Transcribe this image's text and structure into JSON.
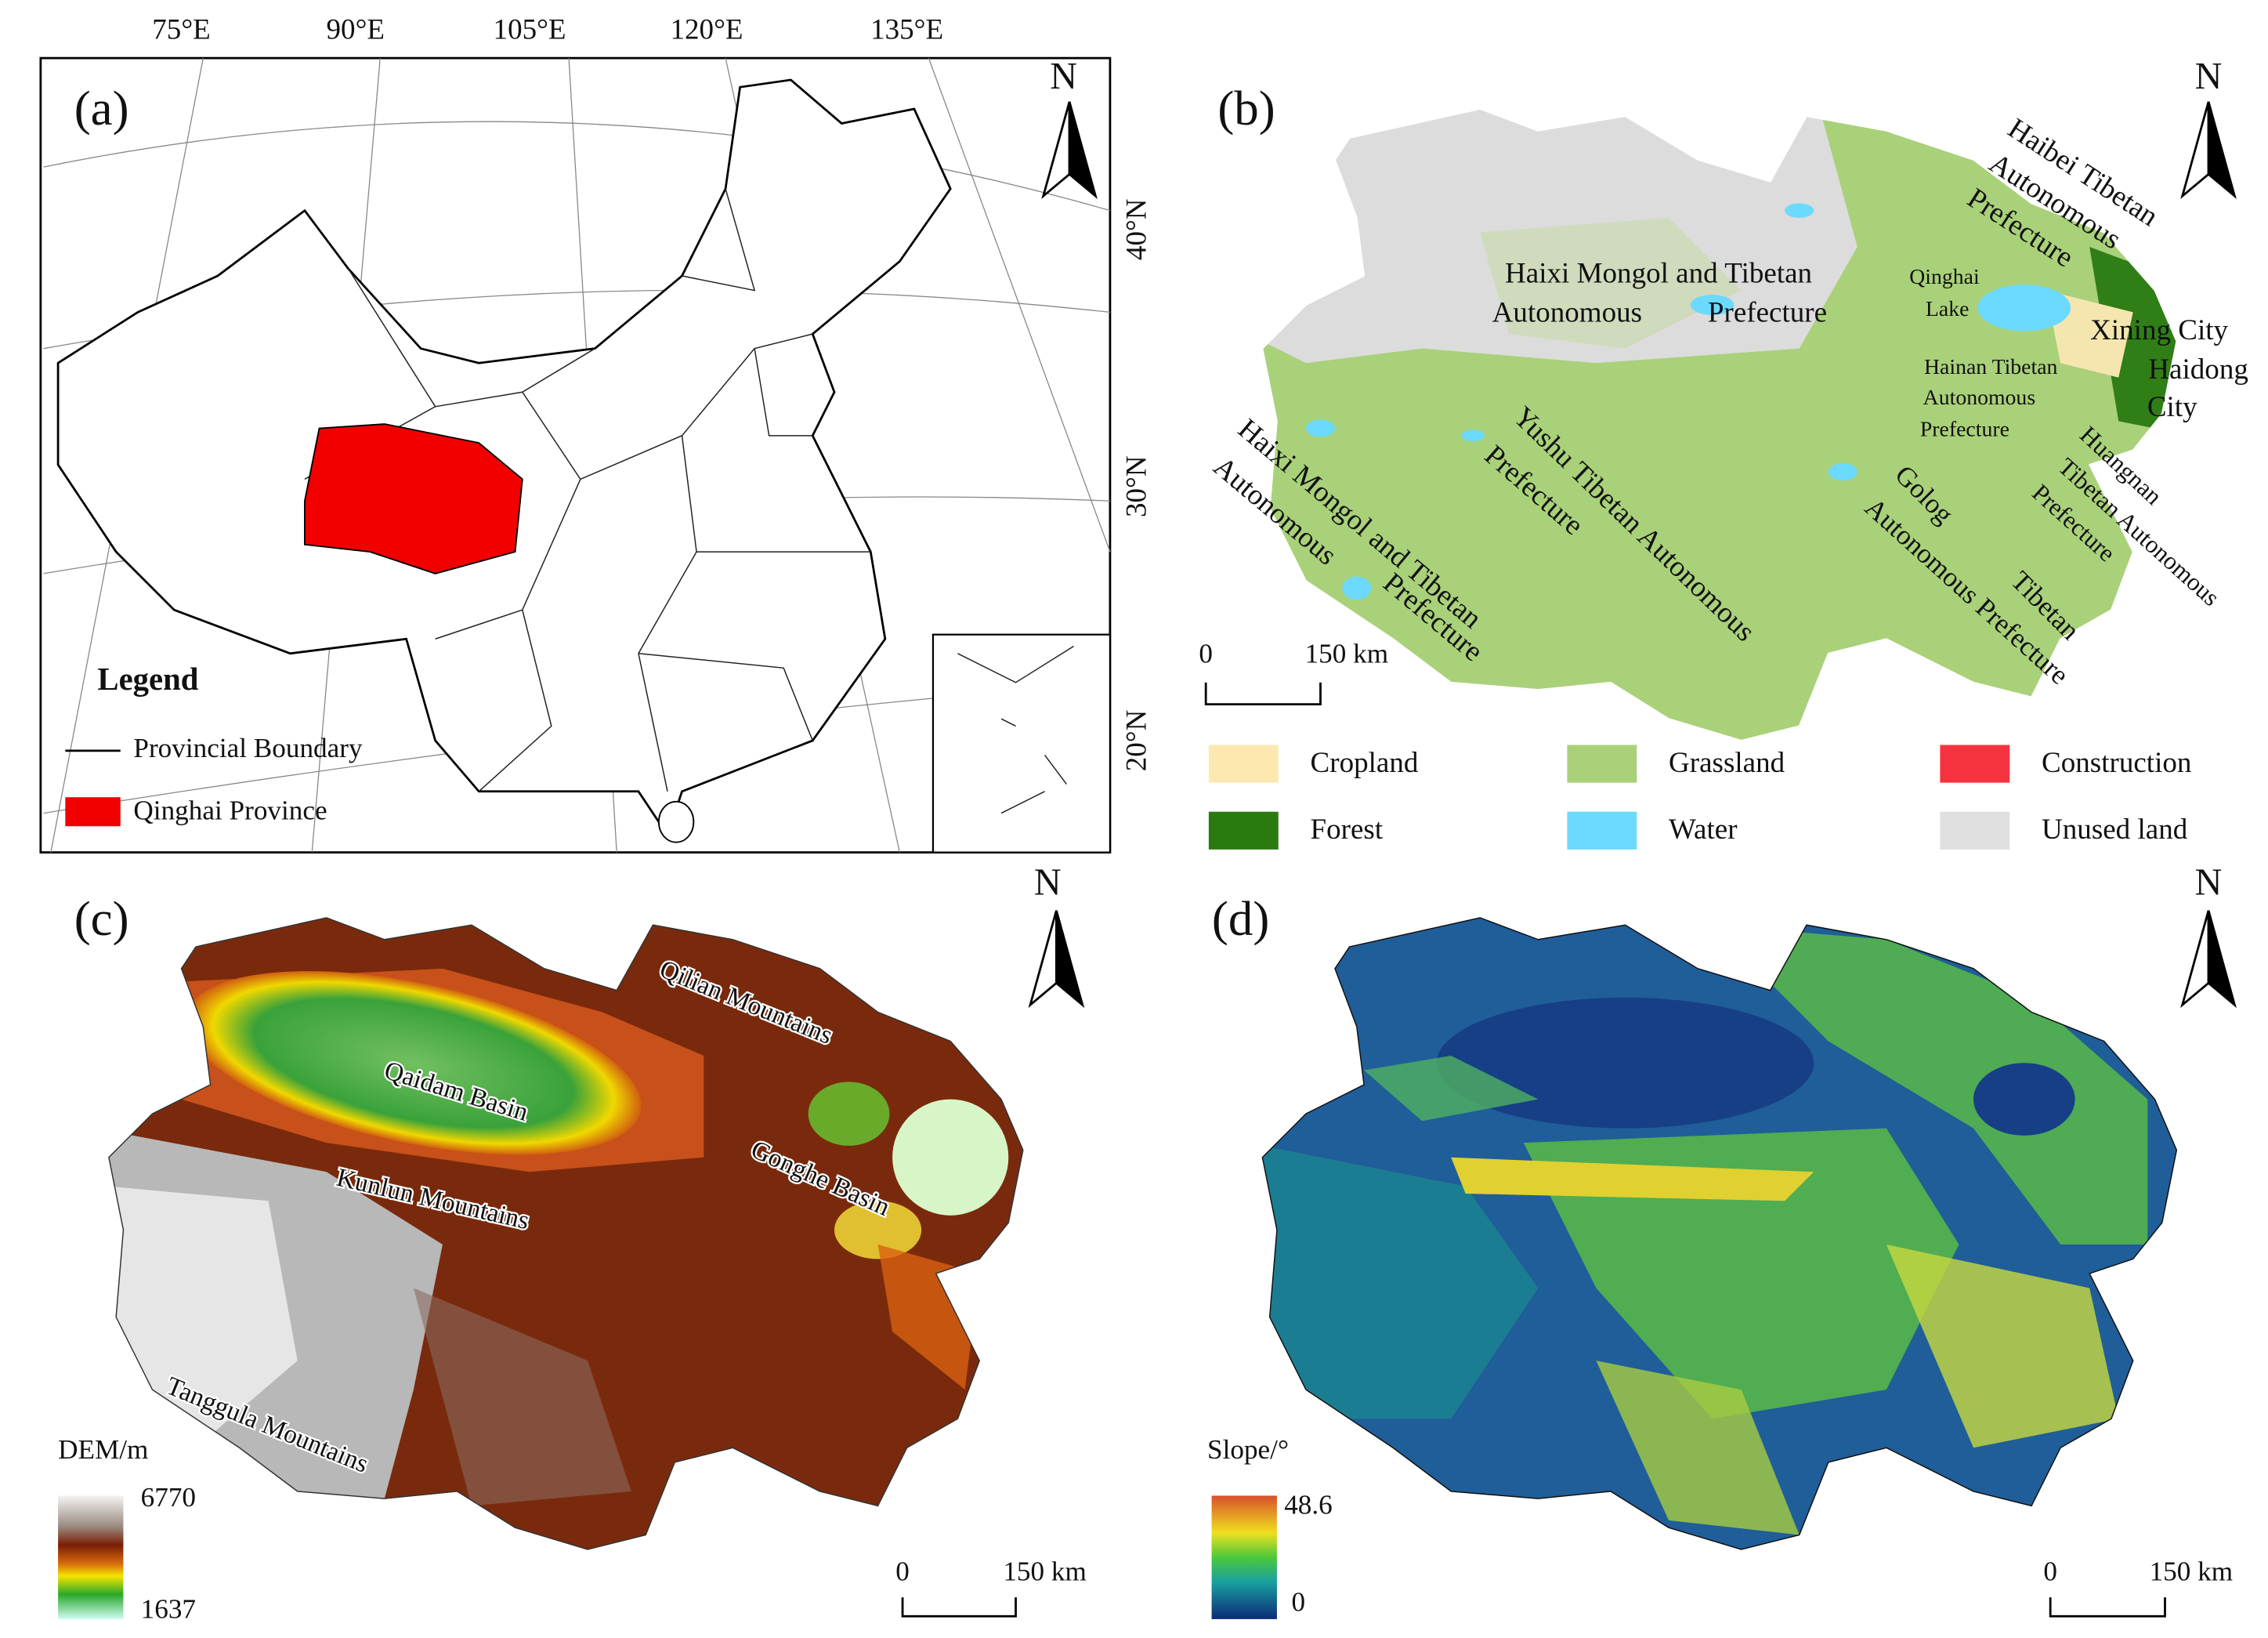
{
  "panel_a": {
    "label": "(a)",
    "north": "N",
    "longitudes": [
      "75°E",
      "90°E",
      "105°E",
      "120°E",
      "135°E"
    ],
    "latitudes": [
      "40°N",
      "30°N",
      "20°N"
    ],
    "legend": {
      "title": "Legend",
      "items": [
        "Provincial Boundary",
        "Qinghai Province"
      ]
    }
  },
  "panel_b": {
    "label": "(b)",
    "north": "N",
    "places": [
      {
        "lines": [
          "Haixi Mongol and Tibetan",
          "Autonomous",
          "Prefecture"
        ]
      },
      {
        "lines": [
          "Qinghai",
          "Lake"
        ]
      },
      {
        "lines": [
          "Haibei Tibetan",
          "Autonomous",
          "Prefecture"
        ]
      },
      {
        "lines": [
          "Xining City"
        ]
      },
      {
        "lines": [
          "Haidong",
          "City"
        ]
      },
      {
        "lines": [
          "Hainan Tibetan",
          "Autonomous",
          "Prefecture"
        ]
      },
      {
        "lines": [
          "Huangnan",
          "Tibetan Autonomous",
          "Prefecture"
        ]
      },
      {
        "lines": [
          "Golog",
          "Tibetan",
          "Autonomous Prefecture"
        ]
      },
      {
        "lines": [
          "Yushu Tibetan Autonomous",
          "Prefecture"
        ]
      },
      {
        "lines": [
          "Haixi Mongol and Tibetan",
          "Autonomous",
          "Prefecture"
        ]
      }
    ],
    "scale": {
      "start": 0,
      "end": "150 km"
    },
    "legend": [
      "Cropland",
      "Grassland",
      "Construction",
      "Forest",
      "Water",
      "Unused land"
    ]
  },
  "panel_c": {
    "label": "(c)",
    "north": "N",
    "places": [
      "Qilian Mountains",
      "Qaidam Basin",
      "Gonghe Basin",
      "Kunlun Mountains",
      "Tanggula Mountains"
    ],
    "colorbar": {
      "title": "DEM/m",
      "max": 6770,
      "min": 1637
    },
    "scale": {
      "start": 0,
      "end": "150 km"
    }
  },
  "panel_d": {
    "label": "(d)",
    "north": "N",
    "colorbar": {
      "title": "Slope/°",
      "max": 48.6,
      "min": 0
    },
    "scale": {
      "start": 0,
      "end": "150 km"
    }
  }
}
